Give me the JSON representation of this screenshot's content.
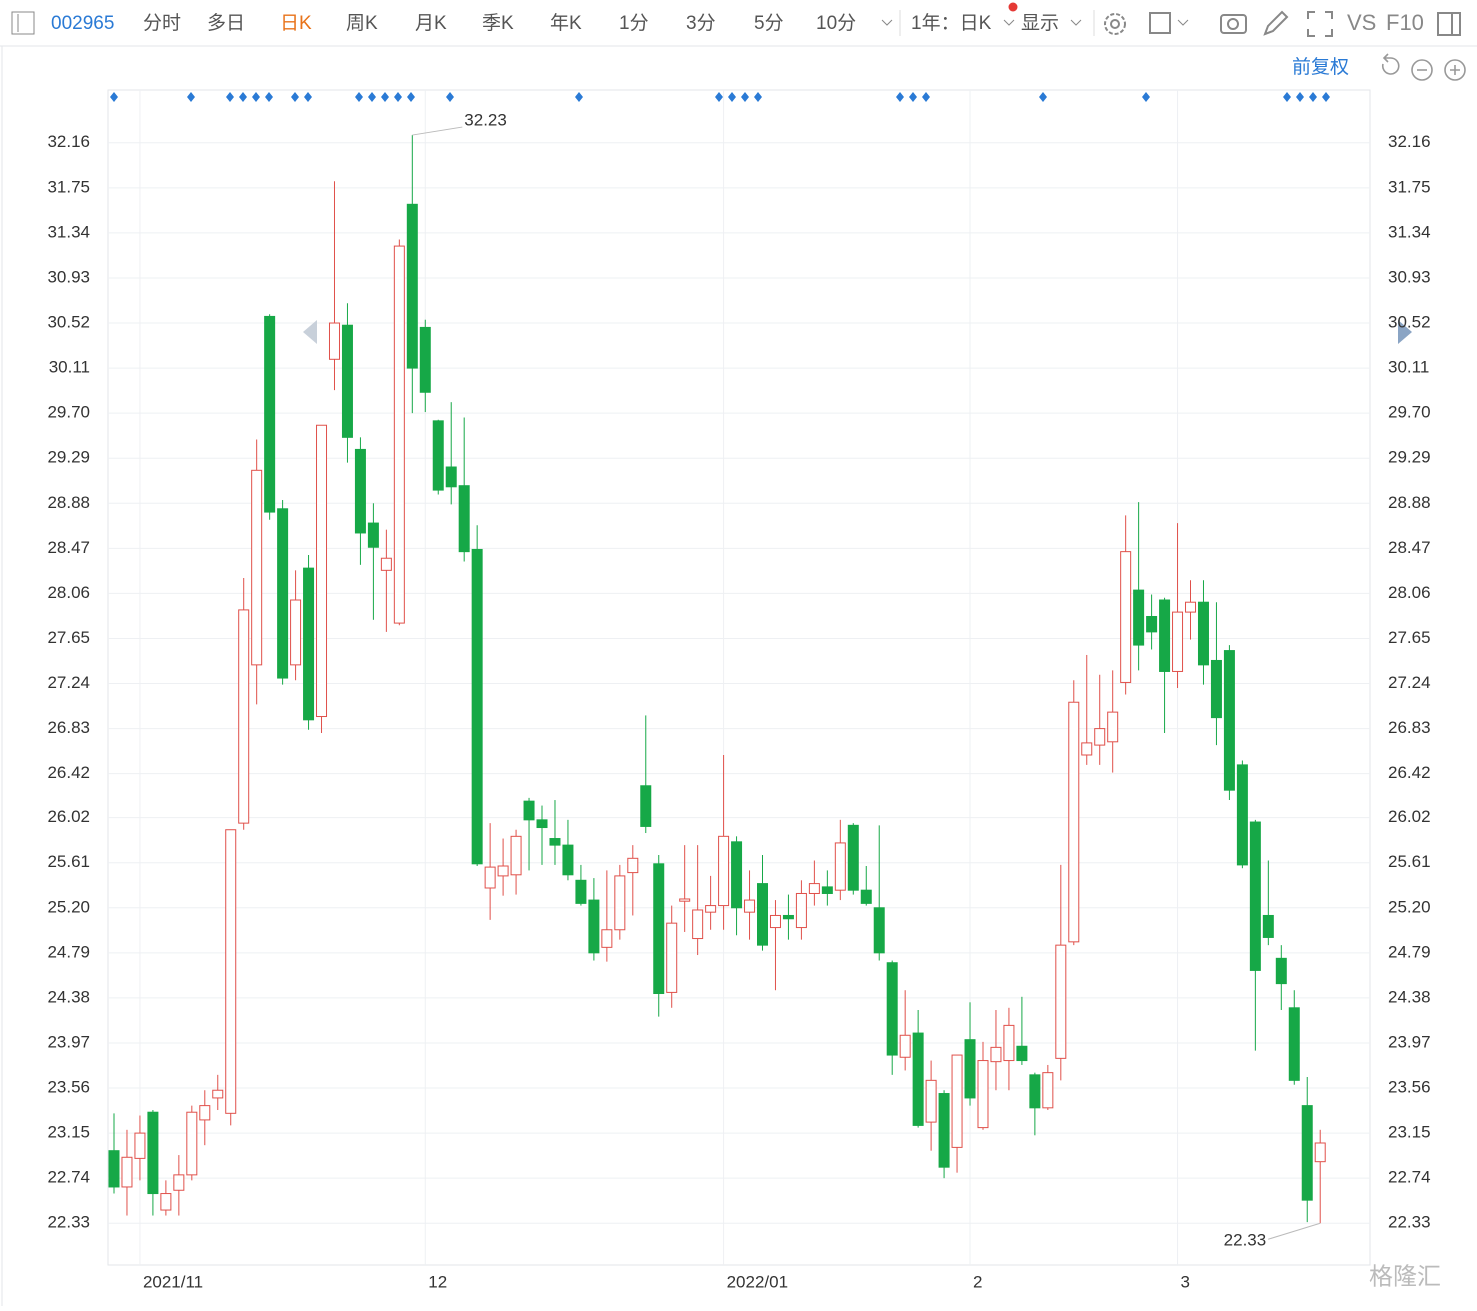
{
  "toolbar": {
    "code": "002965",
    "tabs": [
      "分时",
      "多日",
      "日K",
      "周K",
      "月K",
      "季K",
      "年K",
      "1分",
      "3分",
      "5分",
      "10分"
    ],
    "period": "1年：日K",
    "display": "显示",
    "vs": "VS",
    "f10": "F10",
    "adjust": "前复权"
  },
  "watermark": "格隆汇",
  "chart_data": {
    "type": "candlestick",
    "categories": [
      null,
      null,
      "2021/11",
      null,
      null,
      null,
      null,
      null,
      null,
      null,
      null,
      null,
      null,
      null,
      null,
      null,
      null,
      null,
      null,
      null,
      null,
      null,
      null,
      null,
      "12",
      null,
      null,
      null,
      null,
      null,
      null,
      null,
      null,
      null,
      null,
      null,
      null,
      null,
      null,
      null,
      null,
      null,
      null,
      null,
      null,
      null,
      null,
      "2022/01",
      null,
      null,
      null,
      null,
      null,
      null,
      null,
      null,
      null,
      null,
      null,
      null,
      null,
      null,
      null,
      null,
      null,
      null,
      "2",
      null,
      null,
      null,
      null,
      null,
      null,
      null,
      null,
      null,
      null,
      null,
      null,
      null,
      null,
      null,
      "3",
      null,
      null,
      null,
      null,
      null,
      null,
      null,
      null,
      null,
      null,
      null
    ],
    "open": [
      22.99,
      22.66,
      22.92,
      23.34,
      22.45,
      22.63,
      22.77,
      23.27,
      23.47,
      23.33,
      25.97,
      27.41,
      30.58,
      28.83,
      27.41,
      28.29,
      26.94,
      30.19,
      30.5,
      29.37,
      28.7,
      28.27,
      27.79,
      31.6,
      30.48,
      29.63,
      29.21,
      29.04,
      28.46,
      25.38,
      25.49,
      25.5,
      26.17,
      26.0,
      25.83,
      25.77,
      25.45,
      25.27,
      24.84,
      25.0,
      25.52,
      26.31,
      25.6,
      24.43,
      25.26,
      24.92,
      25.16,
      25.22,
      25.8,
      25.16,
      25.42,
      25.02,
      25.13,
      25.02,
      25.33,
      25.39,
      25.36,
      25.95,
      25.36,
      25.2,
      24.7,
      23.84,
      24.06,
      23.25,
      23.51,
      23.02,
      24.0,
      23.2,
      23.8,
      23.81,
      23.94,
      23.68,
      23.38,
      23.83,
      24.89,
      26.59,
      26.68,
      26.71,
      27.25,
      28.09,
      27.85,
      28.0,
      27.35,
      27.89,
      27.98,
      27.45,
      27.54,
      26.5,
      25.98,
      25.13,
      24.74,
      24.29,
      23.4,
      22.89
    ],
    "high": [
      23.33,
      23.18,
      23.31,
      23.36,
      22.72,
      22.95,
      23.4,
      23.54,
      23.68,
      25.91,
      28.2,
      29.46,
      30.6,
      28.91,
      28.27,
      28.41,
      29.59,
      31.81,
      30.7,
      29.48,
      28.88,
      28.64,
      31.28,
      32.23,
      30.55,
      29.64,
      29.8,
      29.66,
      28.68,
      25.97,
      25.83,
      25.91,
      26.2,
      26.13,
      26.18,
      26.0,
      25.59,
      25.47,
      25.54,
      25.59,
      25.77,
      26.95,
      25.68,
      25.22,
      25.77,
      25.77,
      25.49,
      26.59,
      25.85,
      25.54,
      25.68,
      25.27,
      25.32,
      25.45,
      25.63,
      25.54,
      26.0,
      25.97,
      25.58,
      25.95,
      24.72,
      24.45,
      24.27,
      23.81,
      23.54,
      23.86,
      24.34,
      23.98,
      24.27,
      24.29,
      24.39,
      23.7,
      23.77,
      25.59,
      27.27,
      27.5,
      27.32,
      27.36,
      28.77,
      28.89,
      28.05,
      28.02,
      28.7,
      28.18,
      28.18,
      27.98,
      27.59,
      26.54,
      26.0,
      25.63,
      24.86,
      24.45,
      23.66,
      23.18
    ],
    "low": [
      22.6,
      22.4,
      22.72,
      22.4,
      22.4,
      22.4,
      22.72,
      23.04,
      23.36,
      23.22,
      25.91,
      27.05,
      28.73,
      27.23,
      27.27,
      26.82,
      26.79,
      29.91,
      29.25,
      28.32,
      27.82,
      27.71,
      27.77,
      29.7,
      29.71,
      28.96,
      28.87,
      28.35,
      25.58,
      25.09,
      25.31,
      25.32,
      25.54,
      25.59,
      25.59,
      25.45,
      25.22,
      24.72,
      24.71,
      24.91,
      25.13,
      25.88,
      24.21,
      24.29,
      24.98,
      24.77,
      25.0,
      25.0,
      24.95,
      24.91,
      24.81,
      24.45,
      24.91,
      24.91,
      25.22,
      25.22,
      25.27,
      25.32,
      25.22,
      24.72,
      23.68,
      23.72,
      23.2,
      22.99,
      22.74,
      22.79,
      23.4,
      23.18,
      23.54,
      23.54,
      23.77,
      23.13,
      23.36,
      23.63,
      24.86,
      26.5,
      26.5,
      26.43,
      27.14,
      27.36,
      27.55,
      26.79,
      27.2,
      27.64,
      27.23,
      26.68,
      26.18,
      25.56,
      23.9,
      24.86,
      24.27,
      23.59,
      22.34,
      22.33
    ],
    "close": [
      22.66,
      22.93,
      23.15,
      22.6,
      22.6,
      22.77,
      23.34,
      23.4,
      23.54,
      25.91,
      27.91,
      29.18,
      28.8,
      27.29,
      28.0,
      26.91,
      29.59,
      30.52,
      29.48,
      28.61,
      28.48,
      28.38,
      31.22,
      30.11,
      29.89,
      29.0,
      29.03,
      28.44,
      25.6,
      25.57,
      25.58,
      25.85,
      26.0,
      25.93,
      25.77,
      25.5,
      25.24,
      24.79,
      25.0,
      25.49,
      25.65,
      25.94,
      24.42,
      25.06,
      25.28,
      25.18,
      25.22,
      25.85,
      25.2,
      25.27,
      24.86,
      25.13,
      25.1,
      25.33,
      25.42,
      25.33,
      25.79,
      25.36,
      25.24,
      24.79,
      23.86,
      24.04,
      23.22,
      23.63,
      22.84,
      23.86,
      23.47,
      23.81,
      23.93,
      24.13,
      23.81,
      23.38,
      23.7,
      24.86,
      27.07,
      26.7,
      26.83,
      26.98,
      28.44,
      27.59,
      27.71,
      27.35,
      27.89,
      27.98,
      27.41,
      26.93,
      26.27,
      25.59,
      24.63,
      24.93,
      24.51,
      23.63,
      22.54,
      23.06
    ],
    "up_color": "#e0504a",
    "down_color": "#16a847",
    "max_label": 32.23,
    "min_label": 22.33,
    "ylim": [
      21.95,
      32.64
    ],
    "yticks": [
      32.16,
      31.75,
      31.34,
      30.93,
      30.52,
      30.11,
      {
        "value": 29.7,
        "label": "29.70"
      },
      29.29,
      28.88,
      28.47,
      28.06,
      27.65,
      27.24,
      26.83,
      26.42,
      26.02,
      25.61,
      {
        "value": 25.2,
        "label": "25.20"
      },
      24.79,
      24.38,
      23.97,
      23.56,
      23.15,
      22.74,
      22.33
    ],
    "grid": true
  }
}
